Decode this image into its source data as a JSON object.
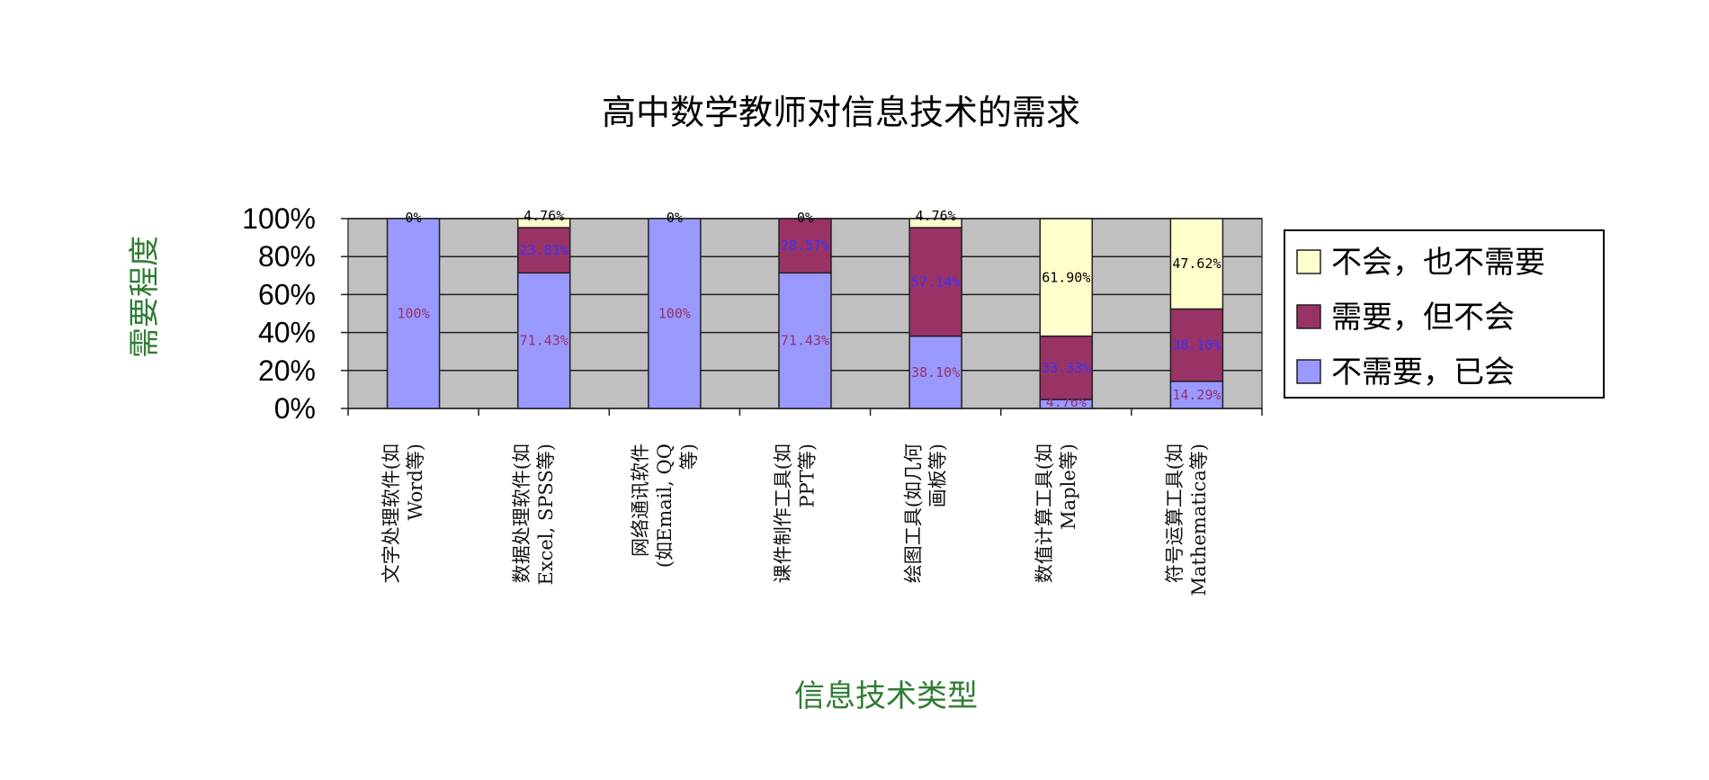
{
  "chart_data": {
    "type": "bar",
    "stacked": true,
    "percent": true,
    "title": "高中数学教师对信息技术的需求",
    "xlabel": "信息技术类型",
    "ylabel": "需要程度",
    "ylim": [
      0,
      100
    ],
    "yticks": [
      "0%",
      "20%",
      "40%",
      "60%",
      "80%",
      "100%"
    ],
    "grid": true,
    "legend_position": "right",
    "categories": [
      [
        "文字处理软件(如",
        "Word等)"
      ],
      [
        "数据处理软件(如",
        "Excel, SPSS等)"
      ],
      [
        "网络通讯软件",
        "(如Email, QQ",
        "等)"
      ],
      [
        "课件制作工具(如",
        "PPT等)"
      ],
      [
        "绘图工具(如几何",
        "画板等)"
      ],
      [
        "数值计算工具(如",
        "Maple等)"
      ],
      [
        "符号运算工具(如",
        "Mathematica等)"
      ]
    ],
    "series": [
      {
        "name": "不需要，已会",
        "color": "#9999ff",
        "label_color": "#993366",
        "values": [
          100,
          71.43,
          100,
          71.43,
          38.1,
          4.76,
          14.29
        ],
        "labels": [
          "100%",
          "71.43%",
          "100%",
          "71.43%",
          "38.10%",
          "4.76%",
          "14.29%"
        ]
      },
      {
        "name": "需要，但不会",
        "color": "#993366",
        "label_color": "#3333ff",
        "values": [
          0,
          23.81,
          0,
          28.57,
          57.14,
          33.33,
          38.1
        ],
        "labels": [
          "",
          "23.81%",
          "",
          "28.57%",
          "57.14%",
          "33.33%",
          "38.10%"
        ]
      },
      {
        "name": "不会，也不需要",
        "color": "#ffffcc",
        "label_color": "#000000",
        "values": [
          0,
          4.76,
          0,
          0,
          4.76,
          61.9,
          47.62
        ],
        "labels": [
          "0%",
          "4.76%",
          "0%",
          "0%",
          "4.76%",
          "61.90%",
          "47.62%"
        ]
      }
    ]
  }
}
